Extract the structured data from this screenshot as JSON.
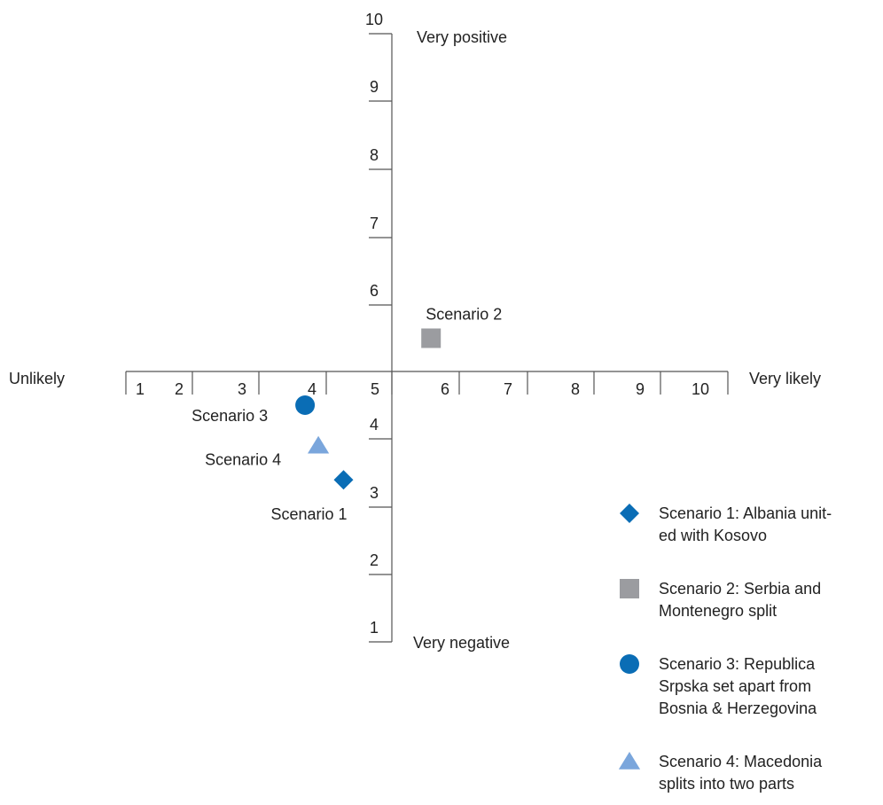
{
  "chart_data": {
    "type": "scatter",
    "title": "",
    "xlabel": "",
    "ylabel": "",
    "x_axis": {
      "min_label": "Unlikely",
      "max_label": "Very likely",
      "ticks": [
        "1",
        "2",
        "3",
        "4",
        "5",
        "6",
        "7",
        "8",
        "9",
        "10"
      ]
    },
    "y_axis": {
      "max_label": "Very positive",
      "min_label": "Very negative",
      "ticks": [
        "1",
        "2",
        "3",
        "4",
        "6",
        "7",
        "8",
        "9",
        "10"
      ]
    },
    "xlim": [
      1,
      10
    ],
    "ylim": [
      1,
      10
    ],
    "grid": false,
    "legend_position": "bottom-right",
    "series": [
      {
        "label": "Scenario 1",
        "legend": "Scenario 1: Albania unit-ed with Kosovo",
        "marker": "diamond",
        "color": "#0a6db5",
        "x": 4.5,
        "y": 3.4
      },
      {
        "label": "Scenario 2",
        "legend": "Scenario 2: Serbia and Montenegro split",
        "marker": "square",
        "color": "#9b9ca0",
        "x": 5.8,
        "y": 5.5
      },
      {
        "label": "Scenario 3",
        "legend": "Scenario 3: Republica Srpska set apart from Bosnia & Herzegovina",
        "marker": "circle",
        "color": "#0a6db5",
        "x": 3.9,
        "y": 4.5
      },
      {
        "label": "Scenario 4",
        "legend": "Scenario 4: Macedonia splits into two parts",
        "marker": "triangle",
        "color": "#7aa6dc",
        "x": 4.1,
        "y": 3.9
      }
    ]
  }
}
